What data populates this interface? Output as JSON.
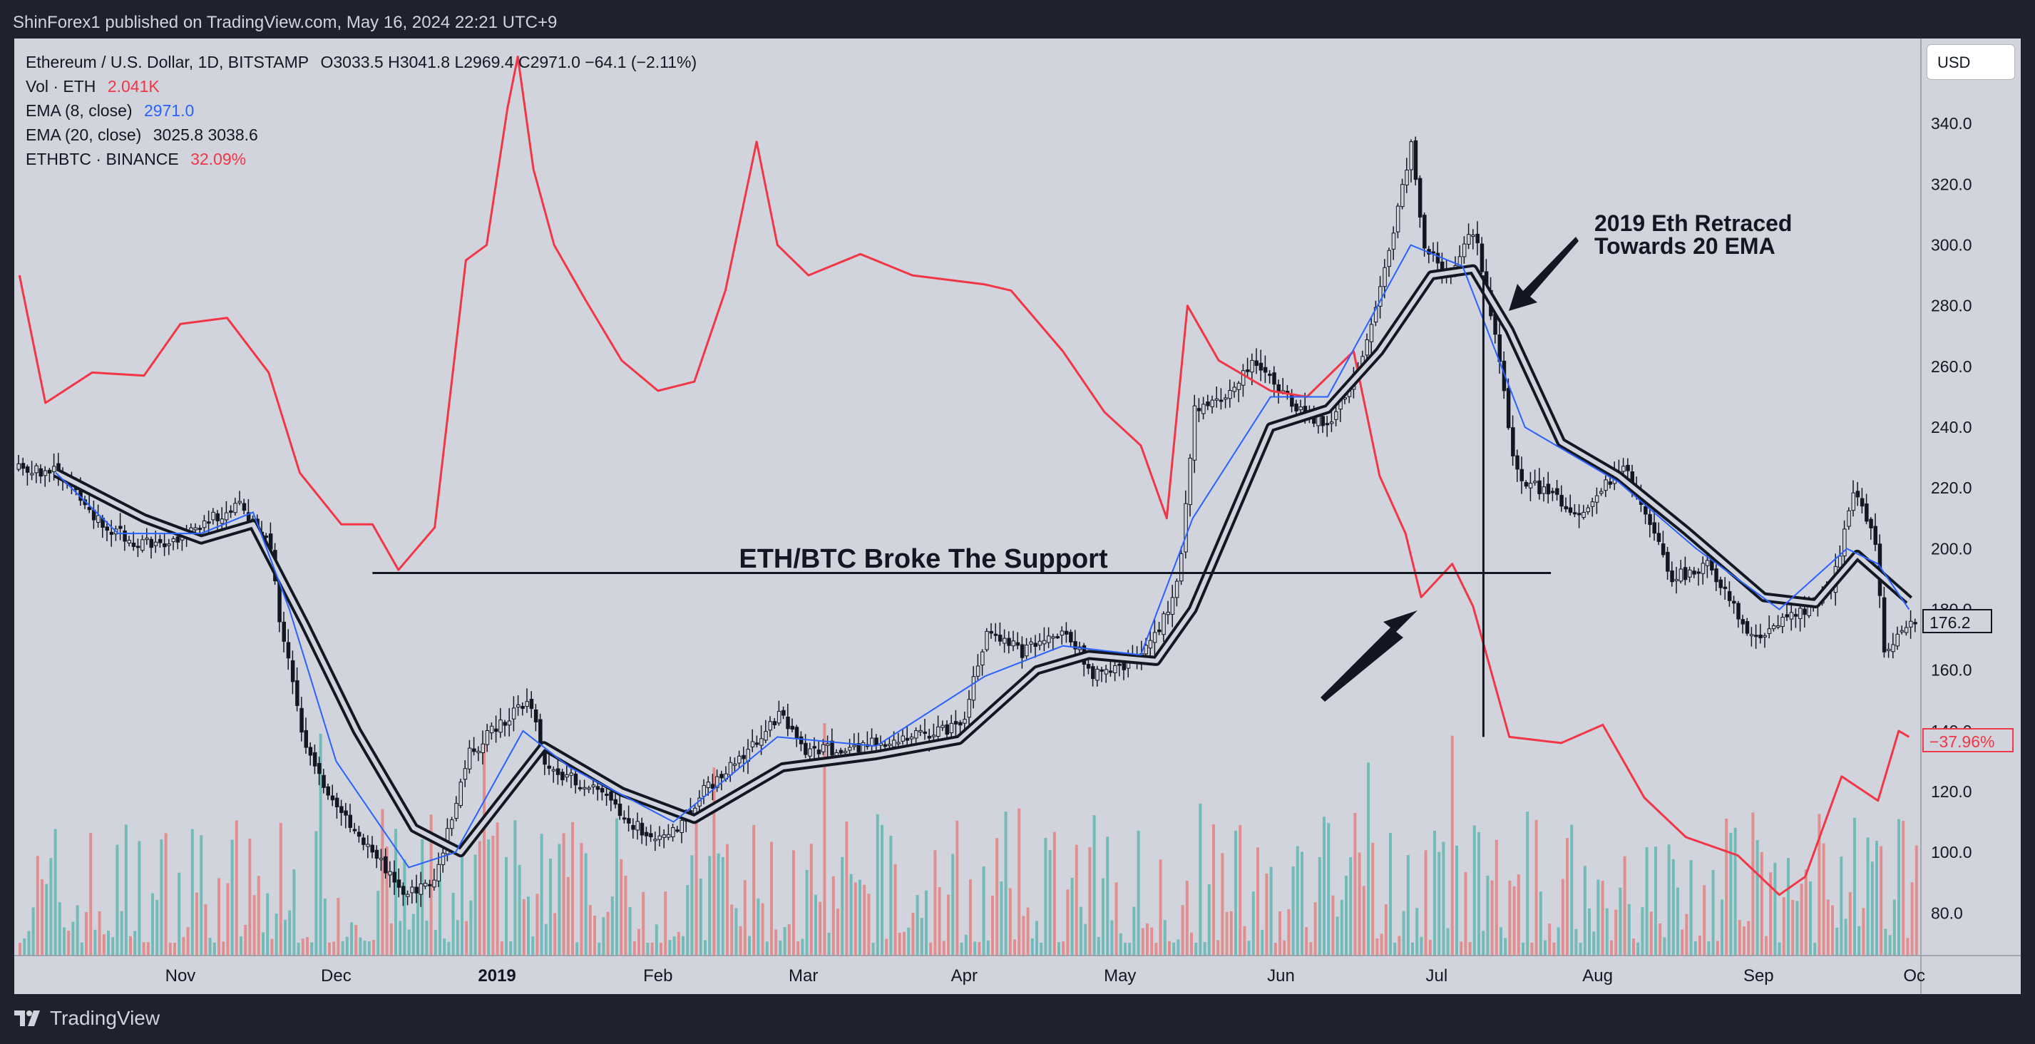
{
  "header": {
    "publisher_line": "ShinForex1 published on TradingView.com, May 16, 2024 22:21 UTC+9"
  },
  "legend": {
    "symbol": "Ethereum / U.S. Dollar, 1D, BITSTAMP",
    "ohlc": "O3033.5  H3041.8  L2969.4  C2971.0  −64.1 (−2.11%)",
    "vol_label": "Vol · ETH",
    "vol_value": "2.041K",
    "ema8_label": "EMA (8, close)",
    "ema8_value": "2971.0",
    "ema20_label": "EMA (20, close)",
    "ema20_values": "3025.8  3038.6",
    "ethbtc_label": "ETHBTC · BINANCE",
    "ethbtc_value": "32.09%"
  },
  "price_scale": {
    "currency": "USD",
    "last_price": "176.2",
    "compare_value": "−37.96%"
  },
  "annotations": {
    "support_text": "ETH/BTC Broke The Support",
    "retrace_line1": "2019 Eth Retraced",
    "retrace_line2": "Towards 20 EMA"
  },
  "footer": {
    "brand": "TradingView"
  },
  "colors": {
    "up": "#26a69a",
    "down": "#ef5350",
    "ema8": "#2962ff",
    "ema20": "#131722",
    "compare": "#f23645",
    "background": "#d1d4dc"
  },
  "chart_data": {
    "type": "line",
    "ylim": [
      66,
      368
    ],
    "yticks": [
      80,
      100,
      120,
      140,
      160,
      180,
      200,
      220,
      240,
      260,
      280,
      300,
      320,
      340,
      360
    ],
    "xticks": [
      {
        "label": "Nov",
        "x": "2018-11-01"
      },
      {
        "label": "Dec",
        "x": "2018-12-01"
      },
      {
        "label": "2019",
        "x": "2019-01-01",
        "bold": true
      },
      {
        "label": "Feb",
        "x": "2019-02-01"
      },
      {
        "label": "Mar",
        "x": "2019-03-01"
      },
      {
        "label": "Apr",
        "x": "2019-04-01"
      },
      {
        "label": "May",
        "x": "2019-05-01"
      },
      {
        "label": "Jun",
        "x": "2019-06-01"
      },
      {
        "label": "Jul",
        "x": "2019-07-01"
      },
      {
        "label": "Aug",
        "x": "2019-08-01"
      },
      {
        "label": "Sep",
        "x": "2019-09-01"
      },
      {
        "label": "Oc",
        "x": "2019-10-01"
      }
    ],
    "series": [
      {
        "name": "ETHUSD",
        "role": "price",
        "points": [
          [
            "2018-10-08",
            226
          ],
          [
            "2018-10-15",
            210
          ],
          [
            "2018-10-22",
            203
          ],
          [
            "2018-10-29",
            200
          ],
          [
            "2018-11-05",
            208
          ],
          [
            "2018-11-12",
            215
          ],
          [
            "2018-11-18",
            200
          ],
          [
            "2018-11-20",
            175
          ],
          [
            "2018-11-25",
            132
          ],
          [
            "2018-12-01",
            115
          ],
          [
            "2018-12-08",
            100
          ],
          [
            "2018-12-14",
            85
          ],
          [
            "2018-12-20",
            93
          ],
          [
            "2018-12-26",
            132
          ],
          [
            "2018-12-31",
            140
          ],
          [
            "2019-01-07",
            150
          ],
          [
            "2019-01-10",
            128
          ],
          [
            "2019-01-15",
            124
          ],
          [
            "2019-01-22",
            118
          ],
          [
            "2019-01-29",
            106
          ],
          [
            "2019-02-04",
            107
          ],
          [
            "2019-02-10",
            121
          ],
          [
            "2019-02-17",
            132
          ],
          [
            "2019-02-24",
            145
          ],
          [
            "2019-03-01",
            134
          ],
          [
            "2019-03-10",
            134
          ],
          [
            "2019-03-20",
            138
          ],
          [
            "2019-03-31",
            141
          ],
          [
            "2019-04-05",
            172
          ],
          [
            "2019-04-12",
            166
          ],
          [
            "2019-04-20",
            173
          ],
          [
            "2019-04-26",
            158
          ],
          [
            "2019-05-02",
            162
          ],
          [
            "2019-05-08",
            172
          ],
          [
            "2019-05-12",
            190
          ],
          [
            "2019-05-15",
            245
          ],
          [
            "2019-05-20",
            250
          ],
          [
            "2019-05-27",
            262
          ],
          [
            "2019-06-04",
            245
          ],
          [
            "2019-06-10",
            240
          ],
          [
            "2019-06-17",
            265
          ],
          [
            "2019-06-22",
            300
          ],
          [
            "2019-06-26",
            335
          ],
          [
            "2019-06-28",
            300
          ],
          [
            "2019-07-03",
            290
          ],
          [
            "2019-07-08",
            305
          ],
          [
            "2019-07-12",
            270
          ],
          [
            "2019-07-16",
            225
          ],
          [
            "2019-07-20",
            220
          ],
          [
            "2019-07-28",
            212
          ],
          [
            "2019-08-06",
            228
          ],
          [
            "2019-08-15",
            190
          ],
          [
            "2019-08-22",
            195
          ],
          [
            "2019-08-30",
            171
          ],
          [
            "2019-09-08",
            178
          ],
          [
            "2019-09-15",
            188
          ],
          [
            "2019-09-19",
            218
          ],
          [
            "2019-09-23",
            205
          ],
          [
            "2019-09-25",
            166
          ],
          [
            "2019-09-30",
            176
          ]
        ]
      },
      {
        "name": "EMA (8, close)",
        "role": "ema8",
        "points": [
          [
            "2018-10-08",
            225
          ],
          [
            "2018-10-20",
            205
          ],
          [
            "2018-11-05",
            205
          ],
          [
            "2018-11-15",
            212
          ],
          [
            "2018-11-22",
            180
          ],
          [
            "2018-12-01",
            130
          ],
          [
            "2018-12-15",
            95
          ],
          [
            "2018-12-24",
            100
          ],
          [
            "2019-01-06",
            140
          ],
          [
            "2019-01-15",
            128
          ],
          [
            "2019-02-04",
            110
          ],
          [
            "2019-02-24",
            138
          ],
          [
            "2019-03-15",
            135
          ],
          [
            "2019-04-05",
            158
          ],
          [
            "2019-04-20",
            168
          ],
          [
            "2019-05-05",
            165
          ],
          [
            "2019-05-15",
            210
          ],
          [
            "2019-05-30",
            250
          ],
          [
            "2019-06-10",
            250
          ],
          [
            "2019-06-26",
            300
          ],
          [
            "2019-07-06",
            293
          ],
          [
            "2019-07-18",
            240
          ],
          [
            "2019-08-05",
            222
          ],
          [
            "2019-08-20",
            200
          ],
          [
            "2019-09-05",
            180
          ],
          [
            "2019-09-18",
            200
          ],
          [
            "2019-09-24",
            195
          ],
          [
            "2019-09-30",
            180
          ]
        ]
      },
      {
        "name": "EMA (20, close)",
        "role": "ema20",
        "points": [
          [
            "2018-10-08",
            225
          ],
          [
            "2018-10-25",
            210
          ],
          [
            "2018-11-05",
            203
          ],
          [
            "2018-11-15",
            208
          ],
          [
            "2018-11-25",
            175
          ],
          [
            "2018-12-05",
            140
          ],
          [
            "2018-12-16",
            108
          ],
          [
            "2018-12-25",
            100
          ],
          [
            "2019-01-10",
            135
          ],
          [
            "2019-01-25",
            120
          ],
          [
            "2019-02-08",
            111
          ],
          [
            "2019-02-25",
            128
          ],
          [
            "2019-03-15",
            132
          ],
          [
            "2019-03-31",
            137
          ],
          [
            "2019-04-15",
            160
          ],
          [
            "2019-04-25",
            165
          ],
          [
            "2019-05-08",
            163
          ],
          [
            "2019-05-15",
            180
          ],
          [
            "2019-05-30",
            240
          ],
          [
            "2019-06-10",
            246
          ],
          [
            "2019-06-20",
            265
          ],
          [
            "2019-06-30",
            290
          ],
          [
            "2019-07-08",
            292
          ],
          [
            "2019-07-15",
            272
          ],
          [
            "2019-07-25",
            235
          ],
          [
            "2019-08-05",
            224
          ],
          [
            "2019-08-18",
            206
          ],
          [
            "2019-09-02",
            184
          ],
          [
            "2019-09-12",
            182
          ],
          [
            "2019-09-20",
            198
          ],
          [
            "2019-09-30",
            183
          ]
        ]
      },
      {
        "name": "ETHBTC · BINANCE",
        "role": "compare",
        "points": [
          [
            "2018-10-01",
            290
          ],
          [
            "2018-10-06",
            248
          ],
          [
            "2018-10-15",
            258
          ],
          [
            "2018-10-25",
            257
          ],
          [
            "2018-11-01",
            274
          ],
          [
            "2018-11-10",
            276
          ],
          [
            "2018-11-18",
            258
          ],
          [
            "2018-11-24",
            225
          ],
          [
            "2018-12-02",
            208
          ],
          [
            "2018-12-08",
            208
          ],
          [
            "2018-12-13",
            193
          ],
          [
            "2018-12-20",
            207
          ],
          [
            "2018-12-26",
            295
          ],
          [
            "2018-12-30",
            300
          ],
          [
            "2019-01-03",
            345
          ],
          [
            "2019-01-05",
            362
          ],
          [
            "2019-01-08",
            325
          ],
          [
            "2019-01-12",
            300
          ],
          [
            "2019-01-18",
            282
          ],
          [
            "2019-01-25",
            262
          ],
          [
            "2019-02-01",
            252
          ],
          [
            "2019-02-08",
            255
          ],
          [
            "2019-02-14",
            285
          ],
          [
            "2019-02-20",
            334
          ],
          [
            "2019-02-24",
            300
          ],
          [
            "2019-03-02",
            290
          ],
          [
            "2019-03-12",
            297
          ],
          [
            "2019-03-22",
            290
          ],
          [
            "2019-04-05",
            287
          ],
          [
            "2019-04-10",
            285
          ],
          [
            "2019-04-20",
            265
          ],
          [
            "2019-04-28",
            245
          ],
          [
            "2019-05-05",
            234
          ],
          [
            "2019-05-10",
            210
          ],
          [
            "2019-05-14",
            280
          ],
          [
            "2019-05-20",
            262
          ],
          [
            "2019-05-30",
            252
          ],
          [
            "2019-06-06",
            250
          ],
          [
            "2019-06-15",
            265
          ],
          [
            "2019-06-20",
            224
          ],
          [
            "2019-06-25",
            205
          ],
          [
            "2019-06-28",
            184
          ],
          [
            "2019-07-04",
            195
          ],
          [
            "2019-07-08",
            181
          ],
          [
            "2019-07-15",
            138
          ],
          [
            "2019-07-25",
            136
          ],
          [
            "2019-08-02",
            142
          ],
          [
            "2019-08-10",
            118
          ],
          [
            "2019-08-18",
            105
          ],
          [
            "2019-08-28",
            99
          ],
          [
            "2019-09-05",
            86
          ],
          [
            "2019-09-10",
            92
          ],
          [
            "2019-09-17",
            125
          ],
          [
            "2019-09-24",
            117
          ],
          [
            "2019-09-28",
            140
          ],
          [
            "2019-09-30",
            138
          ]
        ]
      }
    ],
    "support_line": {
      "y": 192,
      "x_start": "2018-12-08",
      "x_end": "2019-07-23"
    },
    "vertical_line": {
      "x": "2019-07-10",
      "y_top": 290,
      "y_bottom": 138
    }
  }
}
